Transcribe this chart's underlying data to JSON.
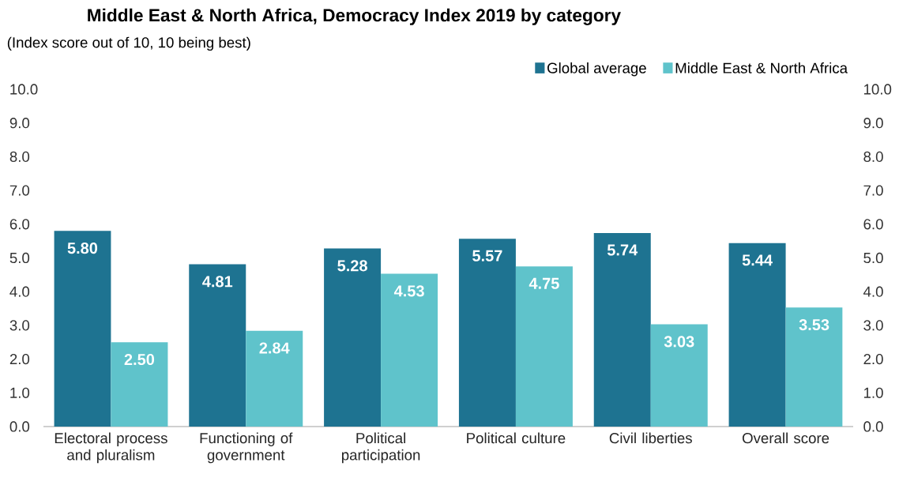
{
  "chart_data": {
    "type": "bar",
    "title": "Middle East & North Africa, Democracy Index 2019 by category",
    "subtitle": "(Index score out of 10, 10 being best)",
    "categories": [
      "Electoral process and pluralism",
      "Functioning of government",
      "Political participation",
      "Political culture",
      "Civil liberties",
      "Overall score"
    ],
    "series": [
      {
        "name": "Global average",
        "color": "#1e7391",
        "values": [
          5.8,
          4.81,
          5.28,
          5.57,
          5.74,
          5.44
        ],
        "value_labels": [
          "5.80",
          "4.81",
          "5.28",
          "5.57",
          "5.74",
          "5.44"
        ]
      },
      {
        "name": "Middle East & North Africa",
        "color": "#5fc3cb",
        "values": [
          2.5,
          2.84,
          4.53,
          4.75,
          3.03,
          3.53
        ],
        "value_labels": [
          "2.50",
          "2.84",
          "4.53",
          "4.75",
          "3.03",
          "3.53"
        ]
      }
    ],
    "ylim": [
      0,
      10
    ],
    "yticks": [
      {
        "value": 0,
        "label": "0.0"
      },
      {
        "value": 1,
        "label": "1.0"
      },
      {
        "value": 2,
        "label": "2.0"
      },
      {
        "value": 3,
        "label": "3.0"
      },
      {
        "value": 4,
        "label": "4.0"
      },
      {
        "value": 5,
        "label": "5.0"
      },
      {
        "value": 6,
        "label": "6.0"
      },
      {
        "value": 7,
        "label": "7.0"
      },
      {
        "value": 8,
        "label": "8.0"
      },
      {
        "value": 9,
        "label": "9.0"
      },
      {
        "value": 10,
        "label": "10.0"
      }
    ],
    "y2lim": [
      0,
      10
    ],
    "y2ticks": [
      {
        "value": 0,
        "label": "0.0"
      },
      {
        "value": 1,
        "label": "1.0"
      },
      {
        "value": 2,
        "label": "2.0"
      },
      {
        "value": 3,
        "label": "3.0"
      },
      {
        "value": 4,
        "label": "4.0"
      },
      {
        "value": 5,
        "label": "5.0"
      },
      {
        "value": 6,
        "label": "6.0"
      },
      {
        "value": 7,
        "label": "7.0"
      },
      {
        "value": 8,
        "label": "8.0"
      },
      {
        "value": 9,
        "label": "9.0"
      },
      {
        "value": 10,
        "label": "10.0"
      }
    ],
    "legend": "top right",
    "grid": false
  }
}
